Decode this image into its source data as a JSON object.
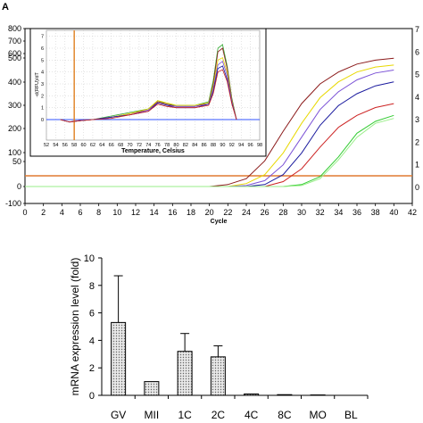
{
  "panel_letter": "A",
  "chart_data": [
    {
      "type": "line",
      "title": "",
      "xlabel": "Cycle",
      "ylabel": "",
      "xlim": [
        0,
        42
      ],
      "ylim": [
        -100,
        800
      ],
      "x_ticks": [
        "0",
        "2",
        "4",
        "6",
        "8",
        "10",
        "12",
        "14",
        "16",
        "18",
        "20",
        "22",
        "24",
        "26",
        "28",
        "30",
        "32",
        "34",
        "36",
        "38",
        "40",
        "42"
      ],
      "y_ticks": [
        "-100",
        "0",
        "50",
        "100",
        "200",
        "300",
        "400",
        "500",
        "600",
        "700",
        "800"
      ],
      "right_y_ticks": [
        "7",
        "6",
        "5",
        "4",
        "3",
        "2",
        "1",
        "0"
      ],
      "threshold": 55,
      "series": [
        {
          "color": "#8b1a1a",
          "x": [
            0,
            20,
            22,
            24,
            26,
            28,
            30,
            32,
            34,
            36,
            38,
            40
          ],
          "y": [
            0,
            0,
            10,
            40,
            130,
            280,
            420,
            520,
            580,
            620,
            640,
            650
          ]
        },
        {
          "color": "#e8d800",
          "x": [
            0,
            22,
            24,
            26,
            28,
            30,
            32,
            34,
            36,
            38,
            40
          ],
          "y": [
            0,
            0,
            15,
            60,
            170,
            320,
            450,
            530,
            580,
            605,
            615
          ]
        },
        {
          "color": "#7b52d6",
          "x": [
            0,
            22,
            24,
            26,
            28,
            30,
            32,
            34,
            36,
            38,
            40
          ],
          "y": [
            0,
            0,
            5,
            30,
            110,
            250,
            390,
            480,
            540,
            575,
            590
          ]
        },
        {
          "color": "#1a1a9e",
          "x": [
            0,
            24,
            26,
            28,
            30,
            32,
            34,
            36,
            38,
            40
          ],
          "y": [
            0,
            0,
            10,
            60,
            170,
            310,
            410,
            470,
            510,
            530
          ]
        },
        {
          "color": "#cc2222",
          "x": [
            0,
            26,
            28,
            30,
            32,
            34,
            36,
            38,
            40
          ],
          "y": [
            0,
            0,
            25,
            90,
            200,
            300,
            360,
            400,
            420
          ]
        },
        {
          "color": "#33cc33",
          "x": [
            0,
            28,
            30,
            32,
            34,
            36,
            38,
            40
          ],
          "y": [
            0,
            0,
            10,
            50,
            150,
            270,
            330,
            360
          ]
        },
        {
          "color": "#99ee88",
          "x": [
            0,
            28,
            30,
            32,
            34,
            36,
            38,
            40
          ],
          "y": [
            0,
            0,
            5,
            40,
            135,
            250,
            320,
            345
          ]
        }
      ]
    },
    {
      "type": "line",
      "title": "",
      "xlabel": "Temperature, Celsius",
      "ylabel": "-d(RFU)/dT",
      "xlim": [
        52,
        98
      ],
      "ylim": [
        0,
        8
      ],
      "x_ticks": [
        "52",
        "54",
        "56",
        "58",
        "60",
        "62",
        "64",
        "66",
        "68",
        "70",
        "72",
        "74",
        "76",
        "78",
        "80",
        "82",
        "84",
        "86",
        "88",
        "90",
        "92",
        "94",
        "96",
        "98"
      ],
      "y_ticks": [
        "0",
        "1",
        "2",
        "3",
        "4",
        "5",
        "6",
        "7",
        "8"
      ],
      "marker_x": 58,
      "series": [
        {
          "color": "#33aa33",
          "x": [
            55,
            57,
            59,
            62,
            66,
            70,
            74,
            76,
            78,
            80,
            84,
            87,
            88,
            89,
            90,
            91,
            92,
            93
          ],
          "y": [
            0,
            -0.2,
            -0.1,
            0,
            0.3,
            0.6,
            0.9,
            1.6,
            1.3,
            1.2,
            1.2,
            1.5,
            3.3,
            6.0,
            6.3,
            4.5,
            1.8,
            0
          ]
        },
        {
          "color": "#8b1a1a",
          "x": [
            55,
            57,
            59,
            62,
            66,
            70,
            74,
            76,
            78,
            80,
            84,
            87,
            88,
            89,
            90,
            91,
            92,
            93
          ],
          "y": [
            0,
            -0.2,
            -0.1,
            0,
            0.2,
            0.5,
            0.8,
            1.5,
            1.3,
            1.1,
            1.1,
            1.4,
            3.0,
            5.7,
            6.0,
            4.3,
            1.7,
            0
          ]
        },
        {
          "color": "#e8d800",
          "x": [
            55,
            57,
            59,
            62,
            66,
            70,
            74,
            76,
            78,
            80,
            84,
            87,
            88,
            89,
            90,
            91,
            92,
            93
          ],
          "y": [
            0,
            -0.2,
            -0.1,
            0,
            0.2,
            0.5,
            0.9,
            1.6,
            1.4,
            1.2,
            1.2,
            1.4,
            2.8,
            5.0,
            5.2,
            4.0,
            1.6,
            0
          ]
        },
        {
          "color": "#7b52d6",
          "x": [
            55,
            57,
            59,
            62,
            66,
            70,
            74,
            76,
            78,
            80,
            84,
            87,
            88,
            89,
            90,
            91,
            92,
            93
          ],
          "y": [
            0,
            -0.2,
            -0.1,
            0,
            0.2,
            0.4,
            0.8,
            1.4,
            1.2,
            1.1,
            1.1,
            1.3,
            2.6,
            4.6,
            4.9,
            3.7,
            1.5,
            0
          ]
        },
        {
          "color": "#1a1a9e",
          "x": [
            55,
            57,
            59,
            62,
            66,
            70,
            74,
            76,
            78,
            80,
            84,
            87,
            88,
            89,
            90,
            91,
            92,
            93
          ],
          "y": [
            0,
            -0.2,
            -0.1,
            0,
            0.2,
            0.4,
            0.7,
            1.4,
            1.2,
            1.0,
            1.0,
            1.3,
            2.4,
            4.3,
            4.5,
            3.4,
            1.4,
            0
          ]
        },
        {
          "color": "#cc2222",
          "x": [
            55,
            57,
            59,
            62,
            66,
            70,
            74,
            76,
            78,
            80,
            84,
            87,
            88,
            89,
            90,
            91,
            92,
            93
          ],
          "y": [
            0,
            -0.2,
            -0.1,
            0,
            0.1,
            0.4,
            0.7,
            1.3,
            1.1,
            1.0,
            1.0,
            1.2,
            2.2,
            4.0,
            4.2,
            3.2,
            1.3,
            0
          ]
        }
      ]
    },
    {
      "type": "bar",
      "title": "",
      "xlabel": "",
      "ylabel": "mRNA expression level (fold)",
      "ylim": [
        0,
        10
      ],
      "y_ticks": [
        "0",
        "2",
        "4",
        "6",
        "8",
        "10"
      ],
      "categories": [
        "GV",
        "MII",
        "1C",
        "2C",
        "4C",
        "8C",
        "MO",
        "BL"
      ],
      "values": [
        5.3,
        1.0,
        3.2,
        2.8,
        0.1,
        0.05,
        0.03,
        0.0
      ],
      "errors": [
        3.4,
        0,
        1.3,
        0.8,
        0,
        0,
        0,
        0
      ]
    }
  ]
}
